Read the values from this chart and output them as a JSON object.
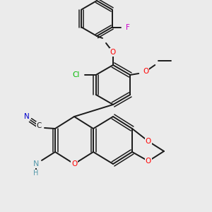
{
  "bg_color": "#ebebeb",
  "bond_color": "#1a1a1a",
  "atom_colors": {
    "O": "#ff0000",
    "N": "#0000cc",
    "Cl": "#00bb00",
    "F": "#cc00cc",
    "C": "#1a1a1a",
    "NH": "#5599aa"
  }
}
